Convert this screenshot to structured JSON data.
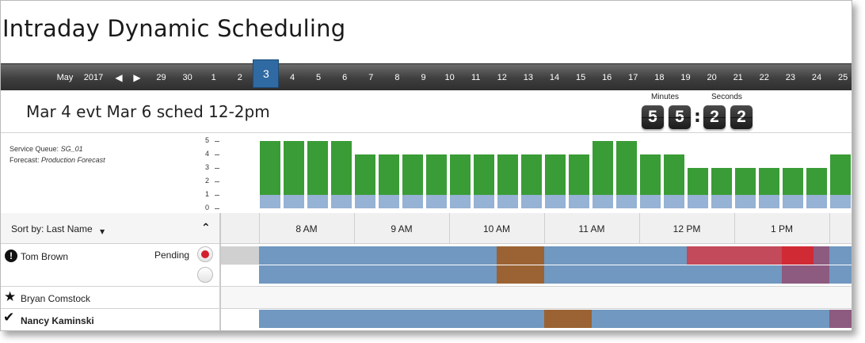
{
  "app": {
    "title": "Intraday Dynamic Scheduling"
  },
  "datebar": {
    "month": "May",
    "year": "2017",
    "days": [
      "29",
      "30",
      "1",
      "2",
      "3",
      "4",
      "5",
      "6",
      "7",
      "8",
      "9",
      "10",
      "11",
      "12",
      "13",
      "14",
      "15",
      "16",
      "17",
      "18",
      "19",
      "20",
      "21",
      "22",
      "23",
      "24",
      "25"
    ],
    "selected_day": "3"
  },
  "schedule": {
    "title": "Mar 4 evt Mar 6 sched 12-2pm"
  },
  "countdown": {
    "minutes_label": "Minutes",
    "seconds_label": "Seconds",
    "minutes_digits": [
      "5",
      "5"
    ],
    "seconds_digits": [
      "2",
      "2"
    ]
  },
  "queue": {
    "service_queue_label": "Service Queue:",
    "service_queue_value": "SG_01",
    "forecast_label": "Forecast:",
    "forecast_value": "Production Forecast"
  },
  "chart_data": {
    "type": "bar",
    "ylim": [
      0,
      5
    ],
    "y_ticks": [
      "0",
      "1",
      "2",
      "3",
      "4",
      "5"
    ],
    "series": [
      {
        "values": [
          1,
          1,
          1,
          1,
          1,
          1,
          1,
          1,
          1,
          1,
          1,
          1,
          1,
          1,
          1,
          1,
          1,
          1,
          1,
          1,
          1,
          1,
          1,
          1,
          1,
          1
        ]
      },
      {
        "values": [
          4,
          4,
          4,
          4,
          3,
          3,
          3,
          3,
          3,
          3,
          3,
          3,
          3,
          3,
          4,
          4,
          3,
          3,
          2,
          2,
          2,
          2,
          2,
          2,
          3,
          3
        ]
      }
    ],
    "colors": {
      "base": "#96b2d4",
      "top": "#3a9c36"
    }
  },
  "sort": {
    "label": "Sort by: Last Name"
  },
  "timeline": {
    "hours": [
      "8 AM",
      "9 AM",
      "10 AM",
      "11 AM",
      "12 PM",
      "1 PM"
    ]
  },
  "agents": [
    {
      "name": "Tom Brown",
      "icon": "alert-icon",
      "status": "Pending"
    },
    {
      "name": "Bryan Comstock",
      "icon": "star-icon"
    },
    {
      "name": "Nancy Kaminski",
      "icon": "check-icon"
    }
  ],
  "colors": {
    "work": "#7098c0",
    "break": "#9b6333",
    "event": "#c24a5a",
    "alert": "#d02b35",
    "other": "#8d5a80",
    "idle": "#d0d0d0",
    "accent": "#2f6aa3"
  }
}
